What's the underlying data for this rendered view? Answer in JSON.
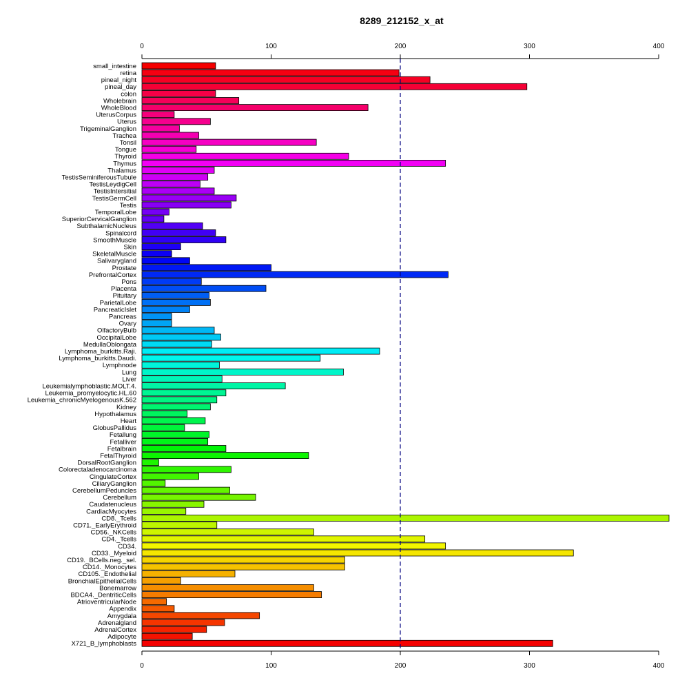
{
  "chart_data": {
    "type": "bar",
    "orientation": "horizontal",
    "title": "8289_212152_x_at",
    "xlabel": "",
    "ylabel": "",
    "xlim": [
      0,
      400
    ],
    "x_ticks": [
      0,
      100,
      200,
      300,
      400
    ],
    "reference_line": {
      "value": 200,
      "style": "dashed",
      "color": "#000080"
    },
    "grid": false,
    "axes": [
      "top",
      "bottom"
    ],
    "categories": [
      "small_intestine",
      "retina",
      "pineal_night",
      "pineal_day",
      "colon",
      "Wholebrain",
      "WholeBlood",
      "UterusCorpus",
      "Uterus",
      "TrigeminalGanglion",
      "Trachea",
      "Tonsil",
      "Tongue",
      "Thyroid",
      "Thymus",
      "Thalamus",
      "TestisSeminiferousTubule",
      "TestisLeydigCell",
      "TestisIntersitial",
      "TestisGermCell",
      "Testis",
      "TemporalLobe",
      "SuperiorCervicalGanglion",
      "SubthalamicNucleus",
      "Spinalcord",
      "SmoothMuscle",
      "Skin",
      "SkeletalMuscle",
      "Salivarygland",
      "Prostate",
      "PrefrontalCortex",
      "Pons",
      "Placenta",
      "Pituitary",
      "ParietalLobe",
      "PancreaticIslet",
      "Pancreas",
      "Ovary",
      "OlfactoryBulb",
      "OccipitalLobe",
      "MedullaOblongata",
      "Lymphoma_burkitts.Raji.",
      "Lymphoma_burkitts.Daudi.",
      "Lymphnode",
      "Lung",
      "Liver",
      "Leukemialymphoblastic.MOLT.4.",
      "Leukemia_promyelocytic.HL.60",
      "Leukemia_chronicMyelogenousK.562",
      "Kidney",
      "Hypothalamus",
      "Heart",
      "GlobusPallidus",
      "Fetallung",
      "Fetalliver",
      "Fetalbrain",
      "FetalThyroid",
      "DorsalRootGanglion",
      "Colorectaladenocarcinoma",
      "CingulateCortex",
      "CiliaryGanglion",
      "CerebellumPeduncles",
      "Cerebellum",
      "Caudatenucleus",
      "CardiacMyocytes",
      "CD8._Tcells",
      "CD71._EarlyErythroid",
      "CD56._NKCells",
      "CD4._Tcells",
      "CD34.",
      "CD33._Myeloid",
      "CD19._BCells.neg._sel.",
      "CD14._Monocytes",
      "CD105._Endothelial",
      "BronchialEpithelialCells",
      "Bonemarrow",
      "BDCA4._DentriticCells",
      "AtrioventricularNode",
      "Appendix",
      "Amygdala",
      "Adrenalgland",
      "AdrenalCortex",
      "Adipocyte",
      "X721_B_lymphoblasts"
    ],
    "values": [
      57,
      199,
      223,
      298,
      57,
      75,
      175,
      25,
      53,
      29,
      44,
      135,
      42,
      160,
      235,
      56,
      51,
      45,
      56,
      73,
      69,
      21,
      17,
      47,
      57,
      65,
      30,
      23,
      37,
      100,
      237,
      46,
      96,
      52,
      53,
      37,
      23,
      23,
      56,
      61,
      54,
      184,
      138,
      60,
      156,
      62,
      111,
      65,
      58,
      53,
      35,
      49,
      33,
      52,
      51,
      65,
      129,
      13,
      69,
      44,
      18,
      68,
      88,
      48,
      34,
      408,
      58,
      133,
      219,
      235,
      334,
      157,
      157,
      72,
      30,
      133,
      139,
      19,
      25,
      91,
      64,
      50,
      39,
      318
    ]
  }
}
